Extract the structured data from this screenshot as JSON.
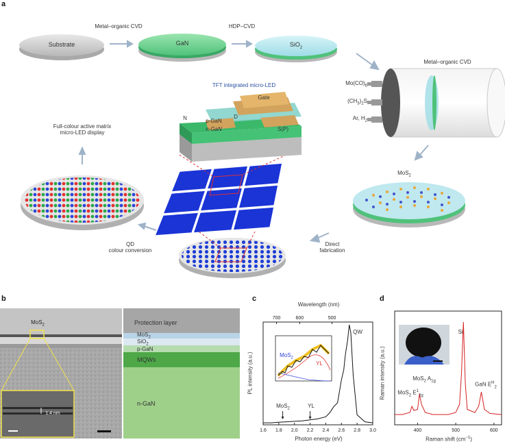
{
  "panel_a": {
    "label": "a",
    "steps": {
      "substrate": "Substrate",
      "gan": "GaN",
      "sio2": "SiO",
      "sio2_sub": "2",
      "mocvd_top": "Metal–organic CVD",
      "hdp_cvd": "HDP–CVD",
      "mocvd_right": "Metal–organic CVD",
      "precursor_1": "Mo(CO)",
      "precursor_1_sub": "6",
      "precursor_2": "(CH",
      "precursor_2_sub": "3",
      "precursor_2_tail": ")",
      "precursor_2_sub2": "2",
      "precursor_2_end": "S",
      "precursor_3": "Ar, H",
      "precursor_3_sub": "2",
      "mos2": "MoS",
      "mos2_sub": "2",
      "direct_fabrication_1": "Direct",
      "direct_fabrication_2": "fabrication",
      "qd_conversion_1": "QD",
      "qd_conversion_2": "colour conversion",
      "display_1": "Full-colour active matrix",
      "display_2": "micro-LED display",
      "tft_title": "TFT integrated micro-LED",
      "tft_gate": "Gate",
      "tft_n": "N",
      "tft_d": "D",
      "tft_sp": "S(P)",
      "tft_pgan": "p-GaN",
      "tft_ngan": "n-GaN"
    }
  },
  "panel_b": {
    "label": "b",
    "mos2": "MoS",
    "mos2_sub": "2",
    "scale_text": "1.4 nm",
    "layers": {
      "protection": "Protection layer",
      "mos2": "MoS",
      "mos2_sub": "2",
      "sio2": "SiO",
      "sio2_sub": "2",
      "pgan": "p-GaN",
      "mqws": "MQWs",
      "ngan": "n-GaN"
    }
  },
  "panel_c": {
    "label": "c",
    "top_axis_label": "Wavelength (nm)",
    "top_ticks": [
      "700",
      "600",
      "500"
    ],
    "ylabel": "PL intensity (a.u.)",
    "xlabel": "Photon energy (eV)",
    "xticks": [
      "1.6",
      "1.8",
      "2.0",
      "2.2",
      "2.4",
      "2.6",
      "2.8",
      "3.0"
    ],
    "qw": "QW",
    "mos2": "MoS",
    "mos2_sub": "2",
    "yl": "YL",
    "inset_mos2": "MoS",
    "inset_mos2_sub": "2",
    "inset_yl": "YL"
  },
  "panel_d": {
    "label": "d",
    "ylabel": "Raman intensity (a.u.)",
    "xlabel": "Raman shift (cm",
    "xlabel_sup": "−1",
    "xlabel_end": ")",
    "xticks": [
      "400",
      "500",
      "600"
    ],
    "si": "Si",
    "mos2_e": "MoS",
    "mos2_e_sub": "2",
    "mos2_e_mode": "E",
    "mos2_e_mode_sup": "1",
    "mos2_e_mode_sub": "2g",
    "mos2_a": "MoS",
    "mos2_a_sub": "2",
    "mos2_a_mode": "A",
    "mos2_a_mode_sub": "1g",
    "gan": "GaN E",
    "gan_sup": "H",
    "gan_sub": "2"
  },
  "chart_data": [
    {
      "type": "line",
      "xlabel": "Photon energy (eV)",
      "ylabel": "PL intensity (a.u.)",
      "x2label": "Wavelength (nm)",
      "xlim": [
        1.6,
        3.0
      ],
      "x2ticks": [
        700,
        600,
        500
      ],
      "annotations": [
        "QW",
        "MoS2",
        "YL"
      ],
      "series": [
        {
          "x": [
            1.6,
            1.7,
            1.8,
            1.9,
            2.0,
            2.1,
            2.2,
            2.3,
            2.4,
            2.45,
            2.5,
            2.55,
            2.6,
            2.63,
            2.65,
            2.68,
            2.7,
            2.72,
            2.75,
            2.8,
            2.9,
            3.0
          ],
          "y": [
            0.02,
            0.02,
            0.025,
            0.03,
            0.035,
            0.04,
            0.05,
            0.06,
            0.08,
            0.12,
            0.18,
            0.22,
            0.45,
            0.55,
            0.7,
            0.85,
            1.0,
            0.92,
            0.5,
            0.1,
            0.03,
            0.02
          ]
        }
      ]
    },
    {
      "type": "line",
      "xlabel": "Raman shift (cm−1)",
      "ylabel": "Raman intensity (a.u.)",
      "xlim": [
        340,
        620
      ],
      "xticks": [
        400,
        500,
        600
      ],
      "annotations": [
        "Si",
        "MoS2 E12g",
        "MoS2 A1g",
        "GaN EH2"
      ],
      "series": [
        {
          "x": [
            340,
            360,
            380,
            385,
            390,
            400,
            405,
            410,
            420,
            440,
            480,
            500,
            510,
            515,
            520,
            525,
            530,
            550,
            560,
            567,
            575,
            590,
            620
          ],
          "y": [
            0.1,
            0.1,
            0.12,
            0.18,
            0.14,
            0.15,
            0.3,
            0.2,
            0.12,
            0.1,
            0.1,
            0.12,
            0.2,
            0.5,
            1.0,
            0.4,
            0.15,
            0.12,
            0.18,
            0.32,
            0.15,
            0.11,
            0.1
          ]
        }
      ]
    }
  ]
}
